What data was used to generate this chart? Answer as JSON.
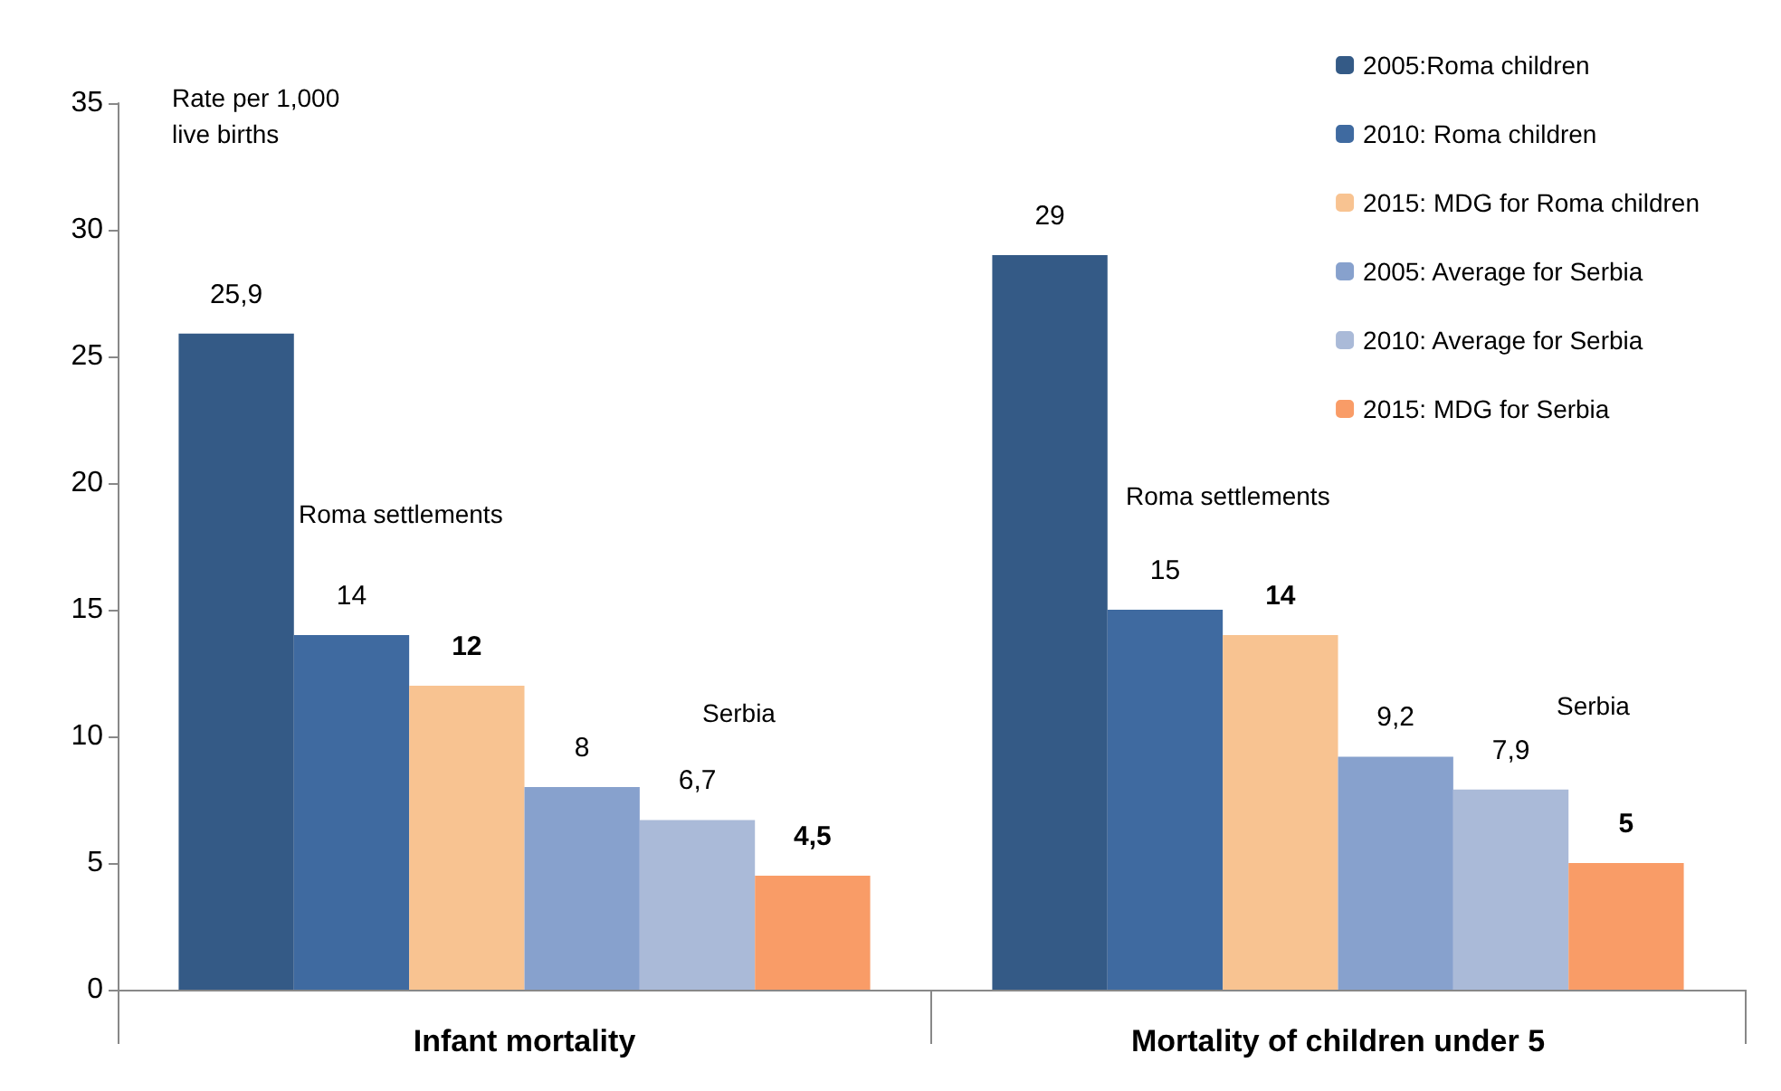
{
  "chart_data": {
    "type": "bar",
    "categories": [
      "Infant mortality",
      "Mortality of children under 5"
    ],
    "series": [
      {
        "name": "2005:Roma children",
        "color": "#345a86",
        "values": [
          25.9,
          29
        ],
        "value_labels": [
          "25,9",
          "29"
        ]
      },
      {
        "name": "2010: Roma children",
        "color": "#3f6aa0",
        "values": [
          14,
          15
        ],
        "value_labels": [
          "14",
          "15"
        ]
      },
      {
        "name": "2015: MDG for Roma children",
        "color": "#f8c391",
        "values": [
          12,
          14
        ],
        "value_labels": [
          "12",
          "14"
        ]
      },
      {
        "name": "2005: Average for Serbia",
        "color": "#87a1cd",
        "values": [
          8,
          9.2
        ],
        "value_labels": [
          "8",
          "9,2"
        ]
      },
      {
        "name": "2010: Average for Serbia",
        "color": "#aabad8",
        "values": [
          6.7,
          7.9
        ],
        "value_labels": [
          "6,7",
          "7,9"
        ]
      },
      {
        "name": "2015: MDG for Serbia",
        "color": "#f99c67",
        "values": [
          4.5,
          5
        ],
        "value_labels": [
          "4,5",
          "5"
        ]
      }
    ],
    "ylim": [
      0,
      35
    ],
    "yticks": [
      0,
      5,
      10,
      15,
      20,
      25,
      30,
      35
    ],
    "grid": false,
    "legend": "top right",
    "annotations": [
      "Rate per 1,000 live births",
      "Roma settlements",
      "Roma settlements",
      "Serbia",
      "Serbia"
    ]
  }
}
